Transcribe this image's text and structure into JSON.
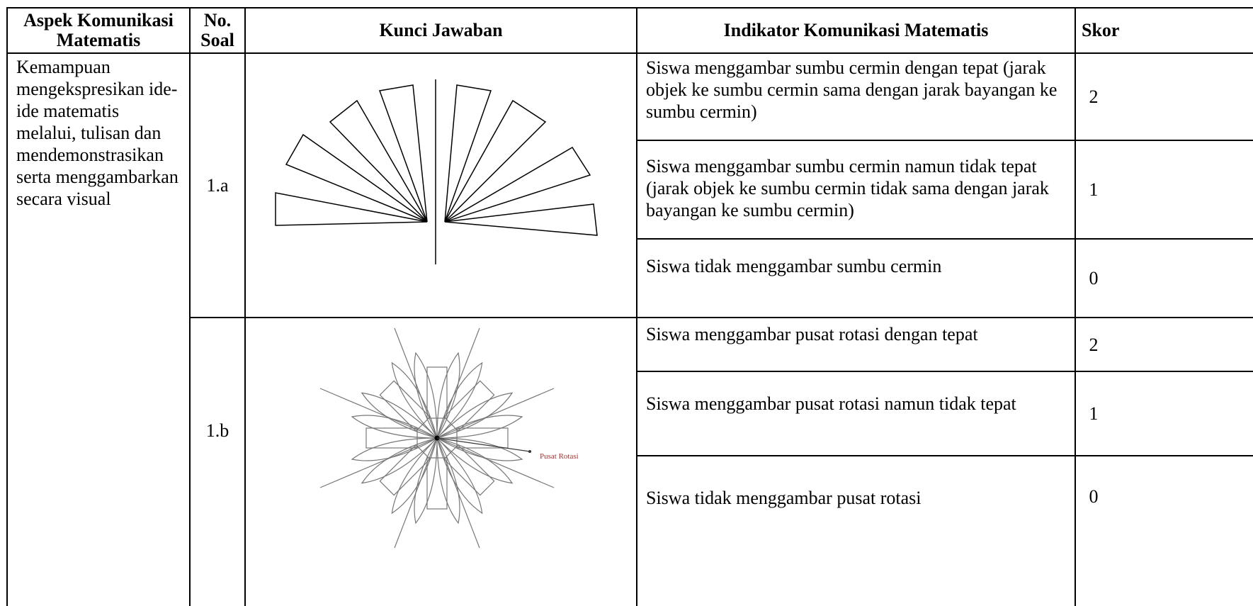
{
  "table": {
    "headers": [
      "Aspek Komunikasi Matematis",
      "No. Soal",
      "Kunci Jawaban",
      "Indikator Komunikasi Matematis",
      "Skor"
    ],
    "aspect": "Kemampuan mengekspresikan ide-ide matematis melalui, tulisan dan mendemonstrasikan serta menggambarkan secara visual",
    "items": [
      {
        "number": "1.a",
        "indicators": [
          {
            "text": "Siswa menggambar sumbu cermin dengan tepat (jarak objek ke sumbu cermin sama dengan jarak bayangan ke sumbu cermin)",
            "score": 2
          },
          {
            "text": "Siswa menggambar sumbu cermin namun tidak tepat (jarak objek ke sumbu cermin tidak sama dengan jarak bayangan ke sumbu cermin)",
            "score": 1
          },
          {
            "text": "Siswa tidak menggambar sumbu cermin",
            "score": 0
          }
        ]
      },
      {
        "number": "1.b",
        "figure_label": "Pusat Rotasi",
        "indicators": [
          {
            "text": "Siswa menggambar pusat rotasi dengan tepat",
            "score": 2
          },
          {
            "text": "Siswa menggambar pusat rotasi namun tidak tepat",
            "score": 1
          },
          {
            "text": "Siswa tidak menggambar pusat rotasi",
            "score": 0
          }
        ]
      }
    ]
  }
}
